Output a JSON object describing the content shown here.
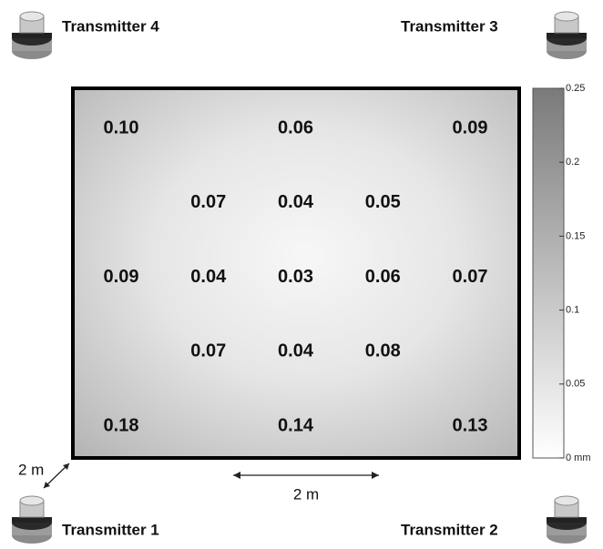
{
  "chart_data": {
    "type": "heatmap",
    "values": [
      [
        0.1,
        null,
        0.06,
        null,
        0.09
      ],
      [
        null,
        0.07,
        0.04,
        0.05,
        null
      ],
      [
        0.09,
        0.04,
        0.03,
        0.06,
        0.07
      ],
      [
        null,
        0.07,
        0.04,
        0.08,
        null
      ],
      [
        0.18,
        null,
        0.14,
        null,
        0.13
      ]
    ],
    "value_labels": [
      [
        "0.10",
        null,
        "0.06",
        null,
        "0.09"
      ],
      [
        null,
        "0.07",
        "0.04",
        "0.05",
        null
      ],
      [
        "0.09",
        "0.04",
        "0.03",
        "0.06",
        "0.07"
      ],
      [
        null,
        "0.07",
        "0.04",
        "0.08",
        null
      ],
      [
        "0.18",
        null,
        "0.14",
        null,
        "0.13"
      ]
    ],
    "clim": [
      0,
      0.25
    ],
    "cticks": [
      0.25,
      0.2,
      0.15,
      0.1,
      0.05,
      {
        "value": 0,
        "label": "0 mm"
      }
    ],
    "colormap": [
      "#ffffff",
      "#7a7a7a"
    ],
    "transmitters": [
      "Transmitter 4",
      "Transmitter 3",
      "Transmitter 1",
      "Transmitter 2"
    ],
    "annotations": [
      "2 m",
      "2 m"
    ]
  }
}
